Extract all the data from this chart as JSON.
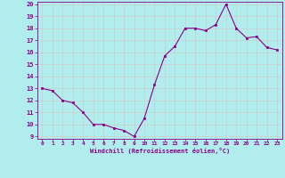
{
  "x": [
    0,
    1,
    2,
    3,
    4,
    5,
    6,
    7,
    8,
    9,
    10,
    11,
    12,
    13,
    14,
    15,
    16,
    17,
    18,
    19,
    20,
    21,
    22,
    23
  ],
  "y": [
    13.0,
    12.8,
    12.0,
    11.8,
    11.0,
    10.0,
    10.0,
    9.7,
    9.5,
    9.0,
    10.5,
    13.3,
    15.7,
    16.5,
    18.0,
    18.0,
    17.8,
    18.3,
    20.0,
    18.0,
    17.2,
    17.3,
    16.4,
    16.2
  ],
  "xlim": [
    -0.5,
    23.5
  ],
  "ylim": [
    9,
    20
  ],
  "yticks": [
    9,
    10,
    11,
    12,
    13,
    14,
    15,
    16,
    17,
    18,
    19,
    20
  ],
  "xticks": [
    0,
    1,
    2,
    3,
    4,
    5,
    6,
    7,
    8,
    9,
    10,
    11,
    12,
    13,
    14,
    15,
    16,
    17,
    18,
    19,
    20,
    21,
    22,
    23
  ],
  "xlabel": "Windchill (Refroidissement éolien,°C)",
  "line_color": "#880088",
  "marker_color": "#880088",
  "bg_color": "#b2eded",
  "grid_color": "#cccccc",
  "tick_label_color": "#880088",
  "xlabel_color": "#880088"
}
